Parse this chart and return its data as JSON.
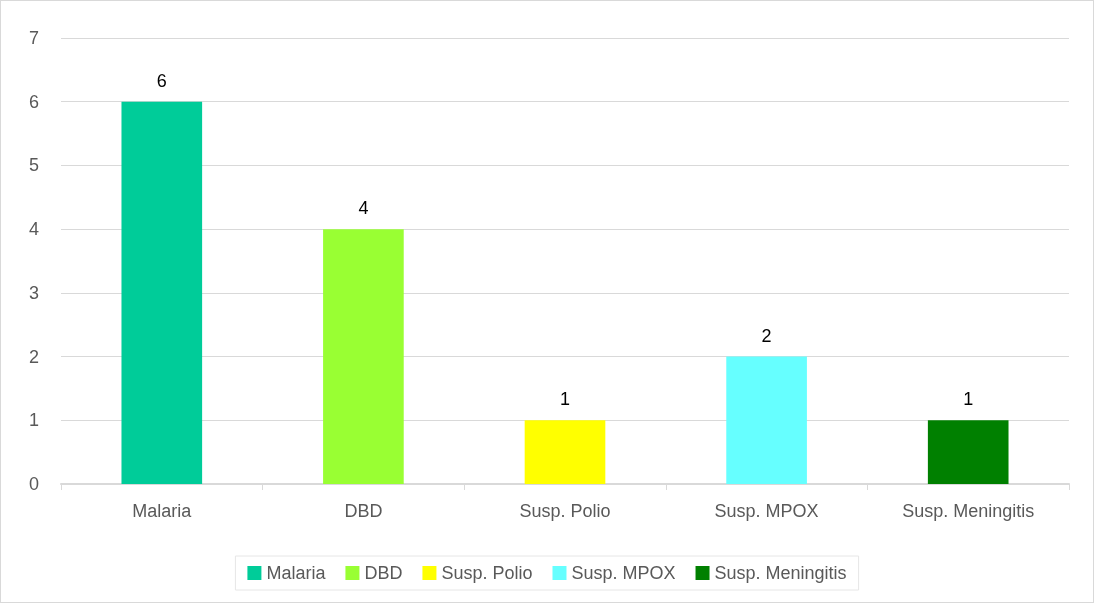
{
  "chart_data": {
    "type": "bar",
    "categories": [
      "Malaria",
      "DBD",
      "Susp. Polio",
      "Susp. MPOX",
      "Susp. Meningitis"
    ],
    "series": [
      {
        "name": "Malaria",
        "color": "#00cc99",
        "values": [
          6,
          null,
          null,
          null,
          null
        ]
      },
      {
        "name": "DBD",
        "color": "#99ff33",
        "values": [
          null,
          4,
          null,
          null,
          null
        ]
      },
      {
        "name": "Susp. Polio",
        "color": "#ffff00",
        "values": [
          null,
          null,
          1,
          null,
          null
        ]
      },
      {
        "name": "Susp. MPOX",
        "color": "#66ffff",
        "values": [
          null,
          null,
          null,
          2,
          null
        ]
      },
      {
        "name": "Susp. Meningitis",
        "color": "#008000",
        "values": [
          null,
          null,
          null,
          null,
          1
        ]
      }
    ],
    "ylim": [
      0,
      7
    ],
    "yticks": [
      0,
      1,
      2,
      3,
      4,
      5,
      6,
      7
    ],
    "grid": "y",
    "legend": "bottom",
    "data_labels": true
  }
}
